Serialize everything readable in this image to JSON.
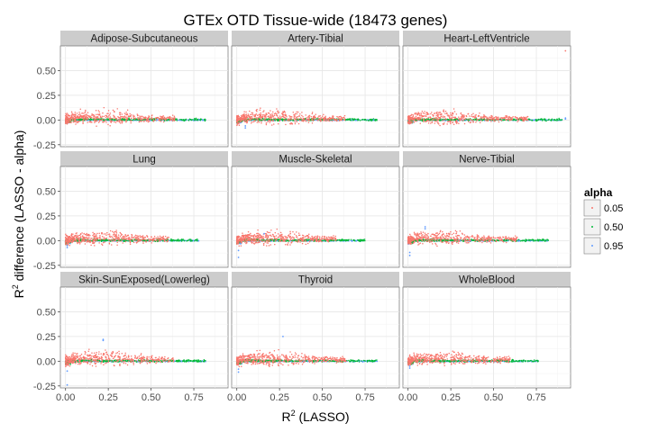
{
  "chart_data": {
    "type": "scatter",
    "title": "GTEx OTD Tissue-wide (18473 genes)",
    "xlabel_main": "R",
    "xlabel_sup": "2",
    "xlabel_rest": " (LASSO)",
    "ylabel_main": "R",
    "ylabel_sup": "2",
    "ylabel_rest": " difference (LASSO - alpha)",
    "xlim": [
      -0.03,
      0.95
    ],
    "ylim": [
      -0.27,
      0.75
    ],
    "x_ticks": [
      0,
      0.25,
      0.5,
      0.75
    ],
    "x_tick_labels": [
      "0.00",
      "0.25",
      "0.50",
      "0.75"
    ],
    "y_ticks": [
      -0.25,
      0,
      0.25,
      0.5
    ],
    "y_tick_labels": [
      "-0.25",
      "0.00",
      "0.25",
      "0.50"
    ],
    "grid": true,
    "legend": {
      "title": "alpha",
      "placement": "right",
      "entries": [
        {
          "label": "0.05",
          "color": "#F8766D"
        },
        {
          "label": "0.50",
          "color": "#00BA38"
        },
        {
          "label": "0.95",
          "color": "#619CFF"
        }
      ]
    },
    "panels": [
      {
        "name": "Adipose-Subcutaneous",
        "x_max": 0.82,
        "outliers": [
          [
            0.78,
            0.005
          ],
          [
            0.8,
            0.003
          ]
        ]
      },
      {
        "name": "Artery-Tibial",
        "x_max": 0.82,
        "outliers": [
          [
            0.05,
            -0.06
          ],
          [
            0.05,
            -0.08
          ],
          [
            0.8,
            0.003
          ]
        ]
      },
      {
        "name": "Heart-LeftVentricle",
        "x_max": 0.9,
        "outliers": [
          [
            0.92,
            0.7
          ],
          [
            0.92,
            0.02
          ],
          [
            0.92,
            0.01
          ]
        ]
      },
      {
        "name": "Lung",
        "x_max": 0.78,
        "outliers": [
          [
            0.01,
            -0.05
          ],
          [
            0.01,
            -0.07
          ]
        ]
      },
      {
        "name": "Muscle-Skeletal",
        "x_max": 0.75,
        "outliers": [
          [
            0.01,
            -0.1
          ],
          [
            0.01,
            -0.17
          ],
          [
            0.16,
            0.07
          ],
          [
            0.02,
            -0.03
          ]
        ]
      },
      {
        "name": "Nerve-Tibial",
        "x_max": 0.82,
        "outliers": [
          [
            0.01,
            -0.12
          ],
          [
            0.01,
            -0.15
          ],
          [
            0.1,
            0.14
          ],
          [
            0.1,
            0.12
          ]
        ]
      },
      {
        "name": "Skin-SunExposed(Lowerleg)",
        "x_max": 0.82,
        "outliers": [
          [
            0.01,
            -0.1
          ],
          [
            0.01,
            -0.24
          ],
          [
            0.22,
            0.22
          ],
          [
            0.22,
            0.21
          ]
        ]
      },
      {
        "name": "Thyroid",
        "x_max": 0.82,
        "outliers": [
          [
            0.01,
            -0.08
          ],
          [
            0.01,
            -0.11
          ],
          [
            0.27,
            0.25
          ]
        ]
      },
      {
        "name": "WholeBlood",
        "x_max": 0.77,
        "outliers": [
          [
            0.01,
            -0.05
          ],
          [
            0.01,
            -0.07
          ]
        ]
      }
    ]
  }
}
